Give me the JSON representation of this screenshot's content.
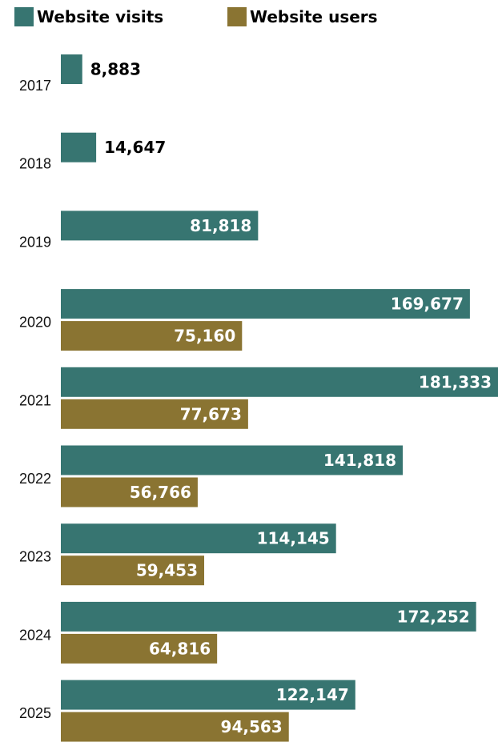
{
  "legend": {
    "visits_label": "Website visits",
    "users_label": "Website users"
  },
  "colors": {
    "visits": "#377571",
    "users": "#8a7432",
    "label_inside": "#ffffff",
    "label_outside": "#000000"
  },
  "chart_data": {
    "type": "bar",
    "orientation": "horizontal",
    "categories": [
      "2017",
      "2018",
      "2019",
      "2020",
      "2021",
      "2022",
      "2023",
      "2024",
      "2025"
    ],
    "series": [
      {
        "name": "Website visits",
        "values": [
          8883,
          14647,
          81818,
          169677,
          181333,
          141818,
          114145,
          172252,
          122147
        ],
        "labels": [
          "8,883",
          "14,647",
          "81,818",
          "169,677",
          "181,333",
          "141,818",
          "114,145",
          "172,252",
          "122,147"
        ]
      },
      {
        "name": "Website users",
        "values": [
          null,
          null,
          null,
          75160,
          77673,
          56766,
          59453,
          64816,
          94563
        ],
        "labels": [
          null,
          null,
          null,
          "75,160",
          "77,673",
          "56,766",
          "59,453",
          "64,816",
          "94,563"
        ]
      }
    ],
    "xlim": [
      0,
      181333
    ],
    "grid": false,
    "legend_position": "top-left"
  }
}
